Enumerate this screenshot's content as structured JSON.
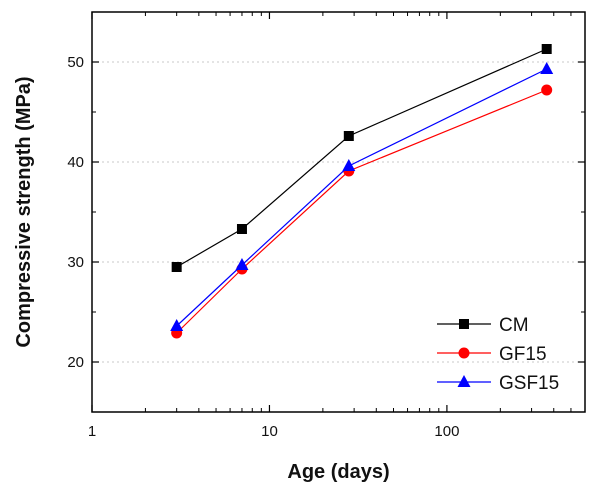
{
  "chart_data": {
    "type": "line",
    "xlabel": "Age (days)",
    "ylabel": "Compressive strength (MPa)",
    "x_scale": "log",
    "xlim": [
      1,
      600
    ],
    "ylim": [
      15,
      55
    ],
    "x_ticks": [
      1,
      10,
      100
    ],
    "x_tick_labels": [
      "1",
      "10",
      "100"
    ],
    "y_ticks": [
      20,
      30,
      40,
      50
    ],
    "y_tick_labels": [
      "20",
      "30",
      "40",
      "50"
    ],
    "grid": "horizontal dotted",
    "legend_position": "bottom-right",
    "x": [
      3,
      7,
      28,
      365
    ],
    "series": [
      {
        "name": "CM",
        "values": [
          29.5,
          33.3,
          42.6,
          51.3
        ],
        "color": "#000000",
        "marker": "square"
      },
      {
        "name": "GF15",
        "values": [
          22.9,
          29.3,
          39.1,
          47.2
        ],
        "color": "#ff0000",
        "marker": "circle"
      },
      {
        "name": "GSF15",
        "values": [
          23.6,
          29.7,
          39.6,
          49.3
        ],
        "color": "#0000ff",
        "marker": "triangle"
      }
    ]
  }
}
